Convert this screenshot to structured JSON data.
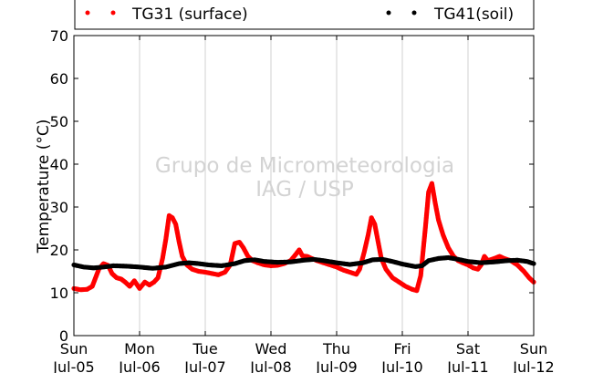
{
  "chart_data": {
    "type": "scatter",
    "title": "",
    "ylabel": "Temperature (°C)",
    "xlabel": "",
    "ylim": [
      0,
      70
    ],
    "yticks": [
      0,
      10,
      20,
      30,
      40,
      50,
      60,
      70
    ],
    "xlim": [
      0,
      7
    ],
    "xticks": [
      {
        "x": 0,
        "day": "Sun",
        "date": "Jul-05"
      },
      {
        "x": 1,
        "day": "Mon",
        "date": "Jul-06"
      },
      {
        "x": 2,
        "day": "Tue",
        "date": "Jul-07"
      },
      {
        "x": 3,
        "day": "Wed",
        "date": "Jul-08"
      },
      {
        "x": 4,
        "day": "Thu",
        "date": "Jul-09"
      },
      {
        "x": 5,
        "day": "Fri",
        "date": "Jul-10"
      },
      {
        "x": 6,
        "day": "Sat",
        "date": "Jul-11"
      },
      {
        "x": 7,
        "day": "Sun",
        "date": "Jul-12"
      }
    ],
    "grid": "vertical",
    "legend_position": "top",
    "watermark": [
      "Grupo de Micrometeorologia",
      "IAG / USP"
    ],
    "series": [
      {
        "name": "TG31 (surface)",
        "color": "#ff0000",
        "points": [
          [
            0.0,
            11.0
          ],
          [
            0.1,
            10.7
          ],
          [
            0.2,
            10.8
          ],
          [
            0.28,
            11.5
          ],
          [
            0.33,
            13.5
          ],
          [
            0.38,
            15.5
          ],
          [
            0.45,
            16.8
          ],
          [
            0.52,
            16.4
          ],
          [
            0.58,
            14.5
          ],
          [
            0.65,
            13.5
          ],
          [
            0.72,
            13.2
          ],
          [
            0.78,
            12.5
          ],
          [
            0.85,
            11.5
          ],
          [
            0.92,
            12.8
          ],
          [
            1.0,
            11.0
          ],
          [
            1.08,
            12.5
          ],
          [
            1.15,
            11.8
          ],
          [
            1.22,
            12.5
          ],
          [
            1.28,
            13.5
          ],
          [
            1.35,
            18.0
          ],
          [
            1.4,
            22.5
          ],
          [
            1.45,
            28.0
          ],
          [
            1.5,
            27.5
          ],
          [
            1.55,
            26.0
          ],
          [
            1.6,
            22.0
          ],
          [
            1.65,
            18.5
          ],
          [
            1.72,
            16.5
          ],
          [
            1.8,
            15.5
          ],
          [
            1.9,
            15.0
          ],
          [
            2.0,
            14.8
          ],
          [
            2.1,
            14.5
          ],
          [
            2.2,
            14.2
          ],
          [
            2.3,
            14.8
          ],
          [
            2.38,
            16.5
          ],
          [
            2.45,
            21.5
          ],
          [
            2.52,
            21.8
          ],
          [
            2.58,
            20.5
          ],
          [
            2.65,
            18.5
          ],
          [
            2.72,
            17.5
          ],
          [
            2.8,
            17.0
          ],
          [
            2.9,
            16.5
          ],
          [
            3.0,
            16.3
          ],
          [
            3.1,
            16.4
          ],
          [
            3.2,
            16.8
          ],
          [
            3.3,
            17.5
          ],
          [
            3.38,
            19.0
          ],
          [
            3.43,
            20.0
          ],
          [
            3.48,
            18.6
          ],
          [
            3.55,
            18.5
          ],
          [
            3.62,
            18.0
          ],
          [
            3.7,
            17.5
          ],
          [
            3.8,
            17.0
          ],
          [
            3.9,
            16.5
          ],
          [
            4.0,
            16.0
          ],
          [
            4.1,
            15.3
          ],
          [
            4.2,
            14.8
          ],
          [
            4.3,
            14.3
          ],
          [
            4.35,
            15.5
          ],
          [
            4.42,
            19.5
          ],
          [
            4.48,
            23.5
          ],
          [
            4.53,
            27.5
          ],
          [
            4.58,
            26.0
          ],
          [
            4.63,
            22.0
          ],
          [
            4.68,
            18.0
          ],
          [
            4.75,
            15.5
          ],
          [
            4.85,
            13.5
          ],
          [
            4.95,
            12.5
          ],
          [
            5.05,
            11.5
          ],
          [
            5.15,
            10.8
          ],
          [
            5.22,
            10.5
          ],
          [
            5.28,
            14.0
          ],
          [
            5.35,
            25.0
          ],
          [
            5.4,
            33.5
          ],
          [
            5.45,
            35.5
          ],
          [
            5.5,
            31.0
          ],
          [
            5.55,
            27.0
          ],
          [
            5.62,
            23.5
          ],
          [
            5.7,
            20.5
          ],
          [
            5.78,
            18.5
          ],
          [
            5.85,
            17.5
          ],
          [
            5.92,
            17.0
          ],
          [
            6.0,
            16.5
          ],
          [
            6.08,
            15.8
          ],
          [
            6.15,
            15.5
          ],
          [
            6.2,
            16.5
          ],
          [
            6.25,
            18.5
          ],
          [
            6.3,
            17.5
          ],
          [
            6.4,
            18.0
          ],
          [
            6.48,
            18.5
          ],
          [
            6.55,
            18.0
          ],
          [
            6.65,
            17.5
          ],
          [
            6.75,
            16.5
          ],
          [
            6.85,
            15.0
          ],
          [
            6.93,
            13.5
          ],
          [
            7.0,
            12.5
          ]
        ]
      },
      {
        "name": "TG41(soil)",
        "color": "#000000",
        "points": [
          [
            0.0,
            16.5
          ],
          [
            0.15,
            16.0
          ],
          [
            0.3,
            15.8
          ],
          [
            0.45,
            16.0
          ],
          [
            0.6,
            16.3
          ],
          [
            0.8,
            16.2
          ],
          [
            1.0,
            16.0
          ],
          [
            1.2,
            15.7
          ],
          [
            1.4,
            16.0
          ],
          [
            1.6,
            16.8
          ],
          [
            1.75,
            17.0
          ],
          [
            1.9,
            16.8
          ],
          [
            2.05,
            16.5
          ],
          [
            2.25,
            16.3
          ],
          [
            2.45,
            16.8
          ],
          [
            2.6,
            17.5
          ],
          [
            2.75,
            17.7
          ],
          [
            2.9,
            17.3
          ],
          [
            3.1,
            17.1
          ],
          [
            3.3,
            17.2
          ],
          [
            3.5,
            17.6
          ],
          [
            3.65,
            17.8
          ],
          [
            3.8,
            17.5
          ],
          [
            4.0,
            17.0
          ],
          [
            4.2,
            16.6
          ],
          [
            4.4,
            17.0
          ],
          [
            4.55,
            17.7
          ],
          [
            4.7,
            17.8
          ],
          [
            4.85,
            17.3
          ],
          [
            5.0,
            16.7
          ],
          [
            5.2,
            16.1
          ],
          [
            5.3,
            16.3
          ],
          [
            5.4,
            17.5
          ],
          [
            5.55,
            18.0
          ],
          [
            5.7,
            18.2
          ],
          [
            5.85,
            17.8
          ],
          [
            6.0,
            17.3
          ],
          [
            6.2,
            17.0
          ],
          [
            6.4,
            17.2
          ],
          [
            6.6,
            17.5
          ],
          [
            6.75,
            17.6
          ],
          [
            6.9,
            17.3
          ],
          [
            7.0,
            16.8
          ]
        ]
      }
    ]
  }
}
